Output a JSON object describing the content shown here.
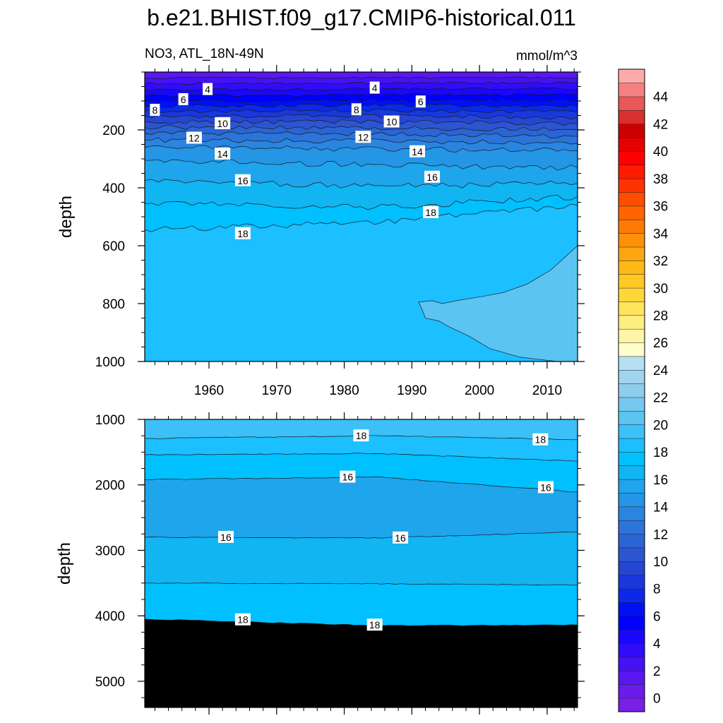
{
  "chart_data": {
    "type": "heatmap",
    "title": "b.e21.BHIST.f09_g17.CMIP6-historical.011",
    "variable_label": "NO3, ATL_18N-49N",
    "units": "mmol/m^3",
    "x": {
      "range": [
        1950.5,
        2014.5
      ],
      "ticks": [
        1960,
        1970,
        1980,
        1990,
        2000,
        2010
      ],
      "tick_labels": [
        "1960",
        "1970",
        "1980",
        "1990",
        "2000",
        "2010"
      ]
    },
    "panels": [
      {
        "name": "upper",
        "ylabel": "depth",
        "ylim": [
          0,
          1000
        ],
        "inverted": true,
        "y_ticks": [
          200,
          400,
          600,
          800,
          1000
        ],
        "y_tick_labels": [
          "200",
          "400",
          "600",
          "800",
          "1000"
        ],
        "contours_depth_at_1950_1985_2014": [
          {
            "level": 2,
            "depths": [
              20,
              20,
              20
            ]
          },
          {
            "level": 3,
            "depths": [
              40,
              38,
              38
            ]
          },
          {
            "level": 4,
            "depths": [
              62,
              58,
              58
            ]
          },
          {
            "level": 5,
            "depths": [
              82,
              78,
              78
            ]
          },
          {
            "level": 6,
            "depths": [
              100,
              97,
              98
            ]
          },
          {
            "level": 7,
            "depths": [
              118,
              115,
              118
            ]
          },
          {
            "level": 8,
            "depths": [
              135,
              133,
              138
            ]
          },
          {
            "level": 9,
            "depths": [
              153,
              152,
              158
            ]
          },
          {
            "level": 10,
            "depths": [
              172,
              172,
              178
            ]
          },
          {
            "level": 11,
            "depths": [
              192,
              193,
              200
            ]
          },
          {
            "level": 12,
            "depths": [
              212,
              215,
              222
            ]
          },
          {
            "level": 13,
            "depths": [
              235,
              238,
              246
            ]
          },
          {
            "level": 14,
            "depths": [
              260,
              266,
              272
            ]
          },
          {
            "level": 15,
            "depths": [
              305,
              322,
              330
            ]
          },
          {
            "level": 16,
            "depths": [
              375,
              395,
              385
            ]
          },
          {
            "level": 17,
            "depths": [
              455,
              468,
              430
            ]
          },
          {
            "level": 18,
            "depths": [
              545,
              520,
              460
            ]
          }
        ],
        "contour_labels": [
          {
            "text": "4",
            "x": 1959.8,
            "depth": 60
          },
          {
            "text": "4",
            "x": 1984.5,
            "depth": 55
          },
          {
            "text": "6",
            "x": 1956.2,
            "depth": 95
          },
          {
            "text": "6",
            "x": 1991.3,
            "depth": 103
          },
          {
            "text": "8",
            "x": 1952.0,
            "depth": 132
          },
          {
            "text": "8",
            "x": 1981.8,
            "depth": 130
          },
          {
            "text": "10",
            "x": 1962.0,
            "depth": 178
          },
          {
            "text": "10",
            "x": 1987.0,
            "depth": 172
          },
          {
            "text": "12",
            "x": 1957.8,
            "depth": 228
          },
          {
            "text": "12",
            "x": 1982.8,
            "depth": 225
          },
          {
            "text": "14",
            "x": 1962.0,
            "depth": 283
          },
          {
            "text": "14",
            "x": 1990.8,
            "depth": 275
          },
          {
            "text": "16",
            "x": 1965.0,
            "depth": 375
          },
          {
            "text": "16",
            "x": 1993.0,
            "depth": 363
          },
          {
            "text": "18",
            "x": 1992.8,
            "depth": 485
          },
          {
            "text": "18",
            "x": 1965.0,
            "depth": 558
          }
        ],
        "region_19_20": "lighter patch from about 1991 to 2014 between 600 m and 1000 m"
      },
      {
        "name": "lower",
        "ylabel": "depth",
        "ylim": [
          1000,
          5400
        ],
        "inverted": true,
        "y_ticks": [
          1000,
          2000,
          3000,
          4000,
          5000
        ],
        "y_tick_labels": [
          "1000",
          "2000",
          "3000",
          "4000",
          "5000"
        ],
        "contours_depth_at_1950_1985_2014": [
          {
            "level": 18,
            "depths": [
              1290,
              1250,
              1310
            ]
          },
          {
            "level": 17,
            "depths": [
              1540,
              1520,
              1640
            ]
          },
          {
            "level": 16,
            "depths": [
              1920,
              1880,
              2110
            ]
          },
          {
            "level": 16,
            "depths": [
              2800,
              2810,
              2720
            ]
          },
          {
            "level": 17,
            "depths": [
              3500,
              3510,
              3530
            ]
          },
          {
            "level": 18,
            "depths": [
              4050,
              4150,
              4140
            ]
          }
        ],
        "contour_labels": [
          {
            "text": "18",
            "x": 1982.5,
            "depth": 1250
          },
          {
            "text": "18",
            "x": 2009.0,
            "depth": 1310
          },
          {
            "text": "16",
            "x": 1980.5,
            "depth": 1880
          },
          {
            "text": "16",
            "x": 2009.8,
            "depth": 2040
          },
          {
            "text": "16",
            "x": 1962.5,
            "depth": 2800
          },
          {
            "text": "16",
            "x": 1988.3,
            "depth": 2810
          },
          {
            "text": "18",
            "x": 1965.0,
            "depth": 4060
          },
          {
            "text": "18",
            "x": 1984.5,
            "depth": 4140
          }
        ]
      }
    ],
    "colorbar": {
      "levels_min": 0,
      "levels_max": 45,
      "step": 1,
      "tick_labels": [
        "0",
        "2",
        "4",
        "6",
        "8",
        "10",
        "12",
        "14",
        "16",
        "18",
        "20",
        "22",
        "24",
        "26",
        "28",
        "30",
        "32",
        "34",
        "36",
        "38",
        "40",
        "42",
        "44"
      ],
      "colors": [
        "#7a1fe6",
        "#6a1cea",
        "#5818ef",
        "#4512f3",
        "#300df7",
        "#1908fb",
        "#0000ff",
        "#0010f5",
        "#0a2ae8",
        "#1838dc",
        "#2546d2",
        "#2c55cf",
        "#2b64d4",
        "#2b74da",
        "#2a85e0",
        "#2595e6",
        "#1ea5ec",
        "#11b5f2",
        "#00c0ff",
        "#1cbfff",
        "#3cc0f7",
        "#5cc4f2",
        "#75c8ee",
        "#8fcdec",
        "#a0d4ef",
        "#b4dff2",
        "#ffffcc",
        "#fff5a8",
        "#ffee80",
        "#ffe45c",
        "#ffd838",
        "#ffc825",
        "#ffb818",
        "#ffa510",
        "#ff9108",
        "#ff7a04",
        "#ff6400",
        "#ff4d00",
        "#ff3300",
        "#ff1a00",
        "#ff0000",
        "#e60000",
        "#cc0000",
        "#d83030",
        "#e85858",
        "#f48080",
        "#ffaaaa"
      ],
      "color_index_offset": -1
    }
  }
}
